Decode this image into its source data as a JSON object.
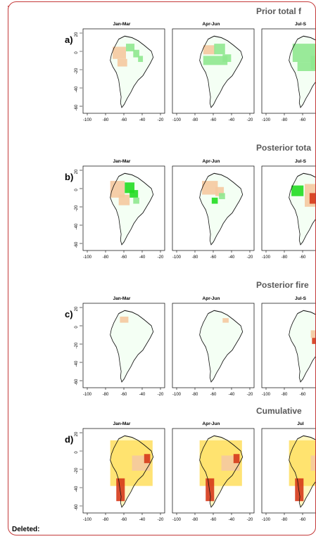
{
  "comment_label": "Deleted:",
  "panels": [
    {
      "label": "a)",
      "title": "Prior total f",
      "months": [
        "Jan-Mar",
        "Apr-Jun",
        "Jul-S"
      ],
      "scheme": "prior"
    },
    {
      "label": "b)",
      "title": "Posterior tota",
      "months": [
        "Jan-Mar",
        "Apr-Jun",
        "Jul-S"
      ],
      "scheme": "posterior"
    },
    {
      "label": "c)",
      "title": "Posterior fire",
      "months": [
        "Jan-Mar",
        "Apr-Jun",
        "Jul-S"
      ],
      "scheme": "fire"
    },
    {
      "label": "d)",
      "title": "Cumulative",
      "months": [
        "Jan-Mar",
        "Apr-Jun",
        "Jul"
      ],
      "scheme": "cumulative"
    }
  ],
  "axes": {
    "y_ticks": [
      "20",
      "0",
      "-20",
      "-40",
      "-60"
    ],
    "x_ticks": [
      "-100",
      "-80",
      "-60",
      "-40",
      "-20"
    ]
  },
  "colors": {
    "border": "#c43a3a",
    "orange": "#f5c9a0",
    "green": "#8fe88f",
    "bright_green": "#22dd22",
    "red": "#d63a1a",
    "yellow": "#ffe066"
  }
}
